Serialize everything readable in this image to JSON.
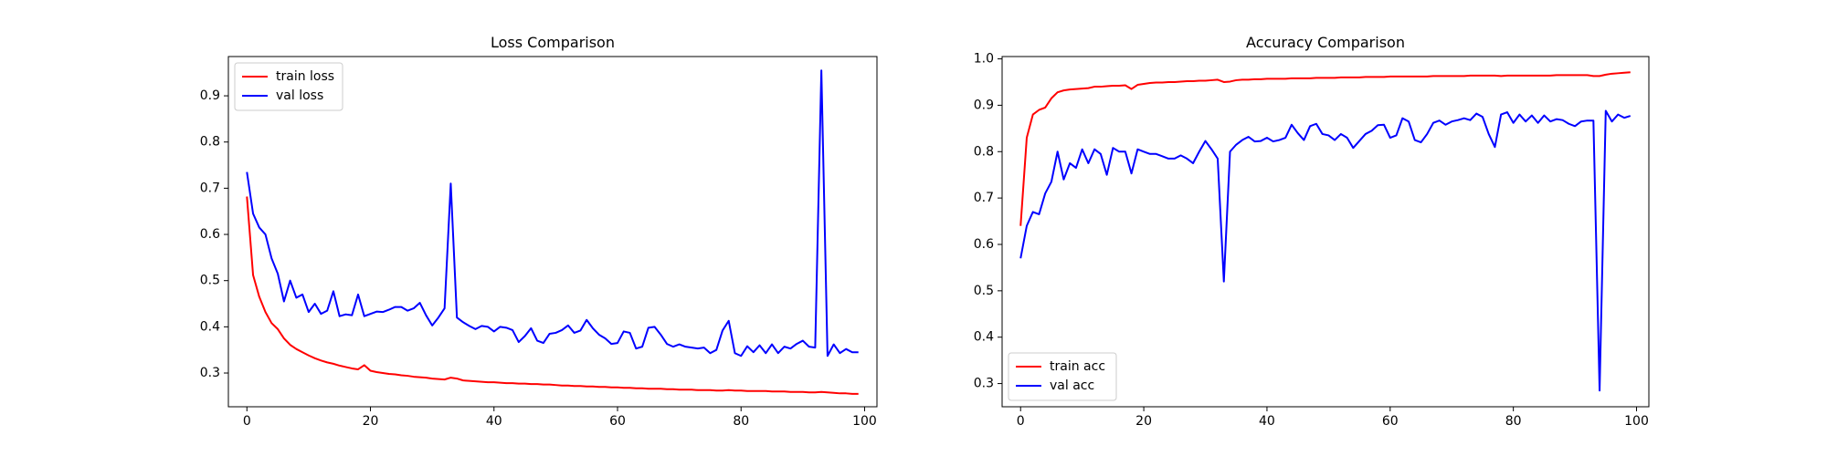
{
  "chart_data": [
    {
      "type": "line",
      "title": "Loss Comparison",
      "xlabel": "",
      "ylabel": "",
      "xlim": [
        -3,
        102
      ],
      "ylim": [
        0.227,
        0.985
      ],
      "xticks": [
        0,
        20,
        40,
        60,
        80,
        100
      ],
      "yticks": [
        0.3,
        0.4,
        0.5,
        0.6,
        0.7,
        0.8,
        0.9
      ],
      "tick_decimals": 1,
      "grid": false,
      "legend_position": "upper-left",
      "series": [
        {
          "name": "train loss",
          "color": "#ff0000",
          "x": [
            0,
            1,
            2,
            3,
            4,
            5,
            6,
            7,
            8,
            9,
            10,
            11,
            12,
            13,
            14,
            15,
            16,
            17,
            18,
            19,
            20,
            21,
            22,
            23,
            24,
            25,
            26,
            27,
            28,
            29,
            30,
            31,
            32,
            33,
            34,
            35,
            36,
            37,
            38,
            39,
            40,
            41,
            42,
            43,
            44,
            45,
            46,
            47,
            48,
            49,
            50,
            51,
            52,
            53,
            54,
            55,
            56,
            57,
            58,
            59,
            60,
            61,
            62,
            63,
            64,
            65,
            66,
            67,
            68,
            69,
            70,
            71,
            72,
            73,
            74,
            75,
            76,
            77,
            78,
            79,
            80,
            81,
            82,
            83,
            84,
            85,
            86,
            87,
            88,
            89,
            90,
            91,
            92,
            93,
            94,
            95,
            96,
            97,
            98,
            99
          ],
          "y": [
            0.682,
            0.512,
            0.465,
            0.432,
            0.408,
            0.395,
            0.375,
            0.361,
            0.352,
            0.345,
            0.338,
            0.332,
            0.327,
            0.323,
            0.32,
            0.316,
            0.313,
            0.31,
            0.308,
            0.317,
            0.305,
            0.302,
            0.3,
            0.298,
            0.297,
            0.295,
            0.294,
            0.292,
            0.291,
            0.29,
            0.288,
            0.287,
            0.286,
            0.29,
            0.288,
            0.284,
            0.283,
            0.282,
            0.281,
            0.28,
            0.28,
            0.279,
            0.278,
            0.278,
            0.277,
            0.277,
            0.276,
            0.276,
            0.275,
            0.275,
            0.274,
            0.273,
            0.273,
            0.272,
            0.272,
            0.271,
            0.271,
            0.27,
            0.27,
            0.269,
            0.269,
            0.268,
            0.268,
            0.267,
            0.267,
            0.266,
            0.266,
            0.266,
            0.265,
            0.265,
            0.264,
            0.264,
            0.264,
            0.263,
            0.263,
            0.263,
            0.262,
            0.262,
            0.263,
            0.262,
            0.262,
            0.261,
            0.261,
            0.261,
            0.261,
            0.26,
            0.26,
            0.26,
            0.259,
            0.259,
            0.259,
            0.258,
            0.258,
            0.259,
            0.258,
            0.257,
            0.256,
            0.256,
            0.255,
            0.255
          ]
        },
        {
          "name": "val loss",
          "color": "#0000ff",
          "x": [
            0,
            1,
            2,
            3,
            4,
            5,
            6,
            7,
            8,
            9,
            10,
            11,
            12,
            13,
            14,
            15,
            16,
            17,
            18,
            19,
            20,
            21,
            22,
            23,
            24,
            25,
            26,
            27,
            28,
            29,
            30,
            31,
            32,
            33,
            34,
            35,
            36,
            37,
            38,
            39,
            40,
            41,
            42,
            43,
            44,
            45,
            46,
            47,
            48,
            49,
            50,
            51,
            52,
            53,
            54,
            55,
            56,
            57,
            58,
            59,
            60,
            61,
            62,
            63,
            64,
            65,
            66,
            67,
            68,
            69,
            70,
            71,
            72,
            73,
            74,
            75,
            76,
            77,
            78,
            79,
            80,
            81,
            82,
            83,
            84,
            85,
            86,
            87,
            88,
            89,
            90,
            91,
            92,
            93,
            94,
            95,
            96,
            97,
            98,
            99
          ],
          "y": [
            0.735,
            0.645,
            0.615,
            0.6,
            0.548,
            0.515,
            0.455,
            0.5,
            0.463,
            0.47,
            0.432,
            0.45,
            0.428,
            0.435,
            0.477,
            0.423,
            0.427,
            0.425,
            0.47,
            0.423,
            0.428,
            0.433,
            0.432,
            0.437,
            0.443,
            0.443,
            0.435,
            0.44,
            0.452,
            0.425,
            0.403,
            0.42,
            0.44,
            0.71,
            0.42,
            0.41,
            0.402,
            0.395,
            0.402,
            0.4,
            0.39,
            0.4,
            0.398,
            0.393,
            0.367,
            0.38,
            0.397,
            0.37,
            0.365,
            0.385,
            0.387,
            0.393,
            0.403,
            0.387,
            0.392,
            0.415,
            0.397,
            0.383,
            0.375,
            0.363,
            0.365,
            0.39,
            0.387,
            0.353,
            0.357,
            0.398,
            0.4,
            0.383,
            0.363,
            0.357,
            0.362,
            0.357,
            0.355,
            0.353,
            0.355,
            0.343,
            0.35,
            0.392,
            0.413,
            0.343,
            0.337,
            0.358,
            0.345,
            0.36,
            0.343,
            0.362,
            0.343,
            0.357,
            0.353,
            0.363,
            0.37,
            0.357,
            0.355,
            0.955,
            0.337,
            0.362,
            0.343,
            0.352,
            0.345,
            0.345
          ]
        }
      ]
    },
    {
      "type": "line",
      "title": "Accuracy Comparison",
      "xlabel": "",
      "ylabel": "",
      "xlim": [
        -3,
        102
      ],
      "ylim": [
        0.25,
        1.005
      ],
      "xticks": [
        0,
        20,
        40,
        60,
        80,
        100
      ],
      "yticks": [
        0.3,
        0.4,
        0.5,
        0.6,
        0.7,
        0.8,
        0.9,
        1.0
      ],
      "tick_decimals": 1,
      "grid": false,
      "legend_position": "lower-left",
      "series": [
        {
          "name": "train acc",
          "color": "#ff0000",
          "x": [
            0,
            1,
            2,
            3,
            4,
            5,
            6,
            7,
            8,
            9,
            10,
            11,
            12,
            13,
            14,
            15,
            16,
            17,
            18,
            19,
            20,
            21,
            22,
            23,
            24,
            25,
            26,
            27,
            28,
            29,
            30,
            31,
            32,
            33,
            34,
            35,
            36,
            37,
            38,
            39,
            40,
            41,
            42,
            43,
            44,
            45,
            46,
            47,
            48,
            49,
            50,
            51,
            52,
            53,
            54,
            55,
            56,
            57,
            58,
            59,
            60,
            61,
            62,
            63,
            64,
            65,
            66,
            67,
            68,
            69,
            70,
            71,
            72,
            73,
            74,
            75,
            76,
            77,
            78,
            79,
            80,
            81,
            82,
            83,
            84,
            85,
            86,
            87,
            88,
            89,
            90,
            91,
            92,
            93,
            94,
            95,
            96,
            97,
            98,
            99
          ],
          "y": [
            0.64,
            0.83,
            0.88,
            0.89,
            0.895,
            0.915,
            0.928,
            0.932,
            0.934,
            0.935,
            0.936,
            0.937,
            0.94,
            0.94,
            0.941,
            0.942,
            0.942,
            0.943,
            0.935,
            0.944,
            0.946,
            0.948,
            0.949,
            0.949,
            0.95,
            0.95,
            0.951,
            0.952,
            0.952,
            0.953,
            0.953,
            0.954,
            0.955,
            0.95,
            0.951,
            0.954,
            0.955,
            0.955,
            0.956,
            0.956,
            0.957,
            0.957,
            0.957,
            0.957,
            0.958,
            0.958,
            0.958,
            0.958,
            0.959,
            0.959,
            0.959,
            0.959,
            0.96,
            0.96,
            0.96,
            0.96,
            0.961,
            0.961,
            0.961,
            0.961,
            0.962,
            0.962,
            0.962,
            0.962,
            0.962,
            0.962,
            0.962,
            0.963,
            0.963,
            0.963,
            0.963,
            0.963,
            0.963,
            0.964,
            0.964,
            0.964,
            0.964,
            0.964,
            0.963,
            0.964,
            0.964,
            0.964,
            0.964,
            0.964,
            0.964,
            0.964,
            0.964,
            0.965,
            0.965,
            0.965,
            0.965,
            0.965,
            0.965,
            0.963,
            0.963,
            0.966,
            0.968,
            0.969,
            0.97,
            0.971
          ]
        },
        {
          "name": "val acc",
          "color": "#0000ff",
          "x": [
            0,
            1,
            2,
            3,
            4,
            5,
            6,
            7,
            8,
            9,
            10,
            11,
            12,
            13,
            14,
            15,
            16,
            17,
            18,
            19,
            20,
            21,
            22,
            23,
            24,
            25,
            26,
            27,
            28,
            29,
            30,
            31,
            32,
            33,
            34,
            35,
            36,
            37,
            38,
            39,
            40,
            41,
            42,
            43,
            44,
            45,
            46,
            47,
            48,
            49,
            50,
            51,
            52,
            53,
            54,
            55,
            56,
            57,
            58,
            59,
            60,
            61,
            62,
            63,
            64,
            65,
            66,
            67,
            68,
            69,
            70,
            71,
            72,
            73,
            74,
            75,
            76,
            77,
            78,
            79,
            80,
            81,
            82,
            83,
            84,
            85,
            86,
            87,
            88,
            89,
            90,
            91,
            92,
            93,
            94,
            95,
            96,
            97,
            98,
            99
          ],
          "y": [
            0.57,
            0.64,
            0.67,
            0.665,
            0.71,
            0.735,
            0.8,
            0.74,
            0.775,
            0.765,
            0.805,
            0.775,
            0.805,
            0.795,
            0.75,
            0.808,
            0.8,
            0.8,
            0.753,
            0.805,
            0.8,
            0.795,
            0.795,
            0.79,
            0.785,
            0.785,
            0.792,
            0.785,
            0.775,
            0.8,
            0.823,
            0.805,
            0.785,
            0.52,
            0.8,
            0.815,
            0.825,
            0.832,
            0.822,
            0.823,
            0.83,
            0.822,
            0.825,
            0.83,
            0.858,
            0.84,
            0.825,
            0.855,
            0.86,
            0.838,
            0.835,
            0.825,
            0.838,
            0.83,
            0.808,
            0.823,
            0.838,
            0.845,
            0.857,
            0.858,
            0.83,
            0.835,
            0.872,
            0.865,
            0.825,
            0.82,
            0.838,
            0.862,
            0.867,
            0.858,
            0.865,
            0.868,
            0.872,
            0.868,
            0.882,
            0.875,
            0.838,
            0.81,
            0.88,
            0.885,
            0.862,
            0.88,
            0.865,
            0.878,
            0.862,
            0.878,
            0.865,
            0.87,
            0.868,
            0.86,
            0.855,
            0.865,
            0.867,
            0.867,
            0.285,
            0.888,
            0.865,
            0.88,
            0.873,
            0.877
          ]
        }
      ]
    }
  ]
}
